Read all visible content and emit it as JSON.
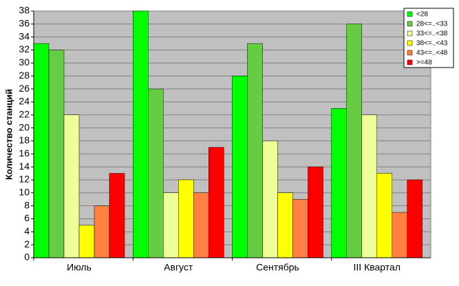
{
  "chart_data": {
    "type": "bar",
    "y_label": "Количество станций",
    "categories": [
      "Июль",
      "Август",
      "Сентябрь",
      "III Квартал"
    ],
    "series": [
      {
        "name": "<28",
        "color": "#00ff00",
        "values": [
          33,
          38,
          28,
          23
        ]
      },
      {
        "name": "28<=..<33",
        "color": "#66cc44",
        "values": [
          32,
          26,
          33,
          36
        ]
      },
      {
        "name": "33<=..<38",
        "color": "#eeff99",
        "values": [
          22,
          10,
          18,
          22
        ]
      },
      {
        "name": "38<=..<43",
        "color": "#ffff00",
        "values": [
          5,
          12,
          10,
          13
        ]
      },
      {
        "name": "43<=..<48",
        "color": "#ff8040",
        "values": [
          8,
          10,
          9,
          7
        ]
      },
      {
        "name": ">=48",
        "color": "#ff0000",
        "values": [
          13,
          17,
          14,
          12
        ]
      }
    ],
    "ylim": [
      0,
      38
    ],
    "yticks": [
      0,
      2,
      4,
      6,
      8,
      10,
      12,
      14,
      16,
      18,
      20,
      22,
      24,
      26,
      28,
      30,
      32,
      34,
      36,
      38
    ],
    "grid": true,
    "legend": "upper right"
  }
}
